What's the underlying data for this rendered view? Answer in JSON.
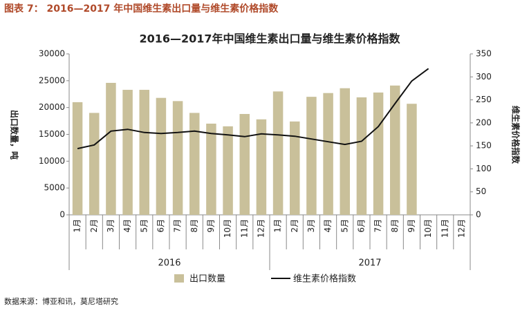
{
  "header": "图表 7： 2016—2017 年中国维生素出口量与维生素价格指数",
  "source": "数据来源：博亚和讯，莫尼塔研究",
  "chart_data": {
    "type": "bar-line",
    "title": "2016—2017年中国维生素出口量与维生素价格指数",
    "y_label": "出口数量，吨",
    "y2_label": "维生素价格指数",
    "years": [
      "2016",
      "2017"
    ],
    "categories": [
      "1月",
      "2月",
      "3月",
      "4月",
      "5月",
      "6月",
      "7月",
      "8月",
      "9月",
      "10月",
      "11月",
      "12月",
      "1月",
      "2月",
      "3月",
      "4月",
      "5月",
      "6月",
      "7月",
      "8月",
      "9月",
      "10月",
      "11月",
      "12月"
    ],
    "series": [
      {
        "name": "出口数量",
        "color": "#c9c09a",
        "kind": "bar",
        "values": [
          21000,
          19000,
          24600,
          23300,
          23300,
          21800,
          21200,
          19000,
          17000,
          16500,
          18800,
          17800,
          23000,
          17400,
          22000,
          22700,
          23600,
          21900,
          22800,
          24100,
          20700,
          null,
          null,
          null
        ]
      },
      {
        "name": "维生素价格指数",
        "color": "#111111",
        "kind": "line",
        "axis": "y2",
        "values": [
          144,
          152,
          182,
          186,
          179,
          177,
          179,
          182,
          177,
          174,
          170,
          176,
          174,
          171,
          165,
          159,
          153,
          160,
          192,
          242,
          291,
          318,
          null,
          null
        ]
      }
    ],
    "ylim": [
      0,
      30000
    ],
    "yticks": [
      0,
      5000,
      10000,
      15000,
      20000,
      25000,
      30000
    ],
    "y2lim": [
      0,
      350
    ],
    "y2ticks": [
      0,
      50,
      100,
      150,
      200,
      250,
      300,
      350
    ]
  }
}
